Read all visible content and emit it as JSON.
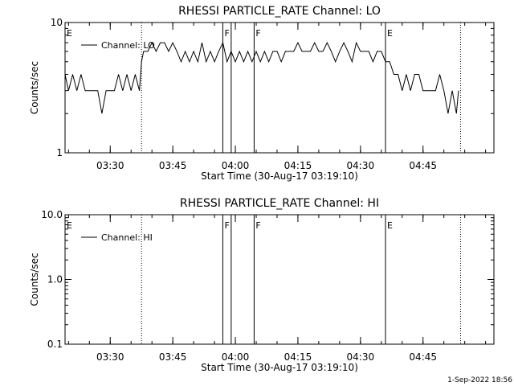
{
  "timestamp": "1-Sep-2022 18:56",
  "chart_data": [
    {
      "type": "line",
      "title": "RHESSI PARTICLE_RATE Channel: LO",
      "xlabel": "Start Time (30-Aug-17 03:19:10)",
      "ylabel": "Counts/sec",
      "yscale": "log",
      "ylim": [
        1,
        10
      ],
      "xlim": [
        "03:19:10",
        "05:02:00"
      ],
      "x_ticks": [
        "03:30",
        "03:45",
        "04:00",
        "04:15",
        "04:30",
        "04:45"
      ],
      "y_ticks": [
        "1",
        "10"
      ],
      "legend": {
        "entries": [
          "Channel: LO"
        ],
        "placement": "top-left"
      },
      "markers": [
        {
          "label": "E",
          "time": "03:19:10",
          "style": "solid"
        },
        {
          "label": "",
          "time": "03:37:30",
          "style": "dotted"
        },
        {
          "label": "F",
          "time": "03:57:00",
          "style": "solid"
        },
        {
          "label": "",
          "time": "03:59:00",
          "style": "solid"
        },
        {
          "label": "F",
          "time": "04:04:30",
          "style": "solid"
        },
        {
          "label": "E",
          "time": "04:36:00",
          "style": "solid"
        },
        {
          "label": "",
          "time": "04:54:00",
          "style": "dotted"
        }
      ],
      "series": [
        {
          "name": "Channel: LO",
          "x": [
            "03:19:10",
            "03:20:00",
            "03:21:00",
            "03:22:00",
            "03:23:00",
            "03:24:00",
            "03:25:00",
            "03:26:00",
            "03:27:00",
            "03:28:00",
            "03:29:00",
            "03:30:00",
            "03:31:00",
            "03:32:00",
            "03:33:00",
            "03:34:00",
            "03:35:00",
            "03:36:00",
            "03:37:00",
            "03:37:30",
            "03:38:00",
            "03:39:00",
            "03:40:00",
            "03:41:00",
            "03:42:00",
            "03:43:00",
            "03:44:00",
            "03:45:00",
            "03:46:00",
            "03:47:00",
            "03:48:00",
            "03:49:00",
            "03:50:00",
            "03:51:00",
            "03:52:00",
            "03:53:00",
            "03:54:00",
            "03:55:00",
            "03:56:00",
            "03:57:00",
            "03:58:00",
            "03:59:00",
            "04:00:00",
            "04:01:00",
            "04:02:00",
            "04:03:00",
            "04:04:00",
            "04:05:00",
            "04:06:00",
            "04:07:00",
            "04:08:00",
            "04:09:00",
            "04:10:00",
            "04:11:00",
            "04:12:00",
            "04:13:00",
            "04:14:00",
            "04:15:00",
            "04:16:00",
            "04:17:00",
            "04:18:00",
            "04:19:00",
            "04:20:00",
            "04:21:00",
            "04:22:00",
            "04:23:00",
            "04:24:00",
            "04:25:00",
            "04:26:00",
            "04:27:00",
            "04:28:00",
            "04:29:00",
            "04:30:00",
            "04:31:00",
            "04:32:00",
            "04:33:00",
            "04:34:00",
            "04:35:00",
            "04:36:00",
            "04:37:00",
            "04:38:00",
            "04:39:00",
            "04:40:00",
            "04:41:00",
            "04:42:00",
            "04:43:00",
            "04:44:00",
            "04:45:00",
            "04:46:00",
            "04:47:00",
            "04:48:00",
            "04:49:00",
            "04:50:00",
            "04:51:00",
            "04:52:00",
            "04:53:00",
            "04:53:30"
          ],
          "values": [
            4,
            3,
            4,
            3,
            4,
            3,
            3,
            3,
            3,
            2,
            3,
            3,
            3,
            4,
            3,
            4,
            3,
            4,
            3,
            5,
            6,
            6,
            7,
            6,
            7,
            7,
            6,
            7,
            6,
            5,
            6,
            5,
            6,
            5,
            7,
            5,
            6,
            5,
            6,
            7,
            5,
            6,
            5,
            6,
            5,
            6,
            5,
            6,
            5,
            6,
            5,
            6,
            6,
            5,
            6,
            6,
            6,
            7,
            6,
            6,
            6,
            7,
            6,
            6,
            7,
            6,
            5,
            6,
            7,
            6,
            5,
            7,
            6,
            6,
            6,
            5,
            6,
            6,
            5,
            5,
            4,
            4,
            3,
            4,
            3,
            4,
            4,
            3,
            3,
            3,
            3,
            4,
            3,
            2,
            3,
            2,
            3
          ]
        }
      ]
    },
    {
      "type": "line",
      "title": "RHESSI PARTICLE_RATE Channel: HI",
      "xlabel": "Start Time (30-Aug-17 03:19:10)",
      "ylabel": "Counts/sec",
      "yscale": "log",
      "ylim": [
        0.1,
        10
      ],
      "xlim": [
        "03:19:10",
        "05:02:00"
      ],
      "x_ticks": [
        "03:30",
        "03:45",
        "04:00",
        "04:15",
        "04:30",
        "04:45"
      ],
      "y_ticks": [
        "0.1",
        "1.0",
        "10.0"
      ],
      "legend": {
        "entries": [
          "Channel: HI"
        ],
        "placement": "top-left"
      },
      "markers": [
        {
          "label": "E",
          "time": "03:19:10",
          "style": "solid"
        },
        {
          "label": "",
          "time": "03:37:30",
          "style": "dotted"
        },
        {
          "label": "F",
          "time": "03:57:00",
          "style": "solid"
        },
        {
          "label": "",
          "time": "03:59:00",
          "style": "solid"
        },
        {
          "label": "F",
          "time": "04:04:30",
          "style": "solid"
        },
        {
          "label": "E",
          "time": "04:36:00",
          "style": "solid"
        },
        {
          "label": "",
          "time": "04:54:00",
          "style": "dotted"
        }
      ],
      "series": [
        {
          "name": "Channel: HI",
          "x": [],
          "values": []
        }
      ]
    }
  ]
}
